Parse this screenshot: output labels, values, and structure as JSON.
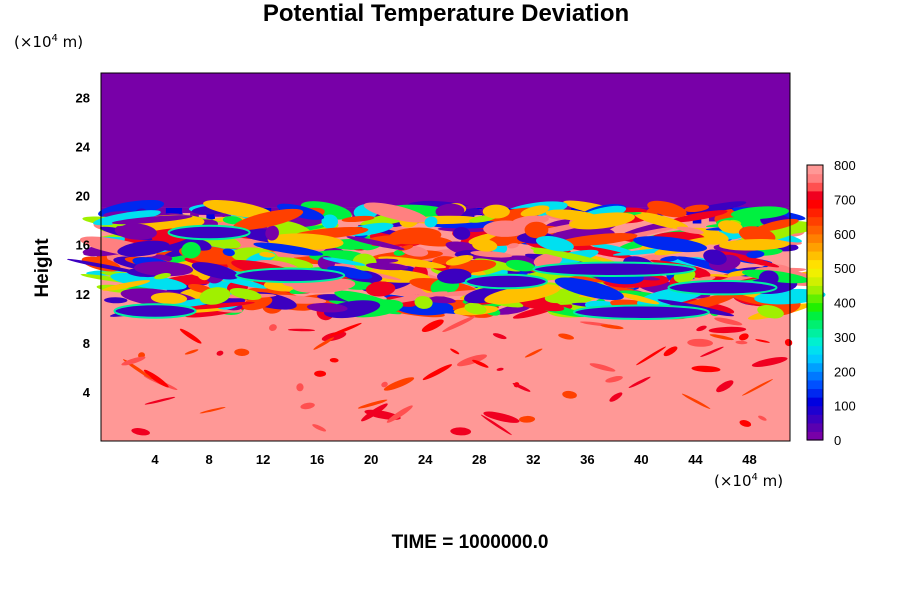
{
  "chart_data": {
    "type": "heatmap",
    "title": "Potential Temperature Deviation",
    "xlabel": "",
    "ylabel": "Height",
    "x_unit_prefix": "(×10",
    "x_unit_exp": "4",
    "x_unit_suffix": " m)",
    "y_unit_prefix": "(×10",
    "y_unit_exp": "4",
    "y_unit_suffix": " m)",
    "xlim": [
      0,
      51
    ],
    "ylim": [
      0,
      30
    ],
    "x_ticks": [
      4,
      8,
      12,
      16,
      20,
      24,
      28,
      32,
      36,
      40,
      44,
      48
    ],
    "y_ticks": [
      4,
      8,
      12,
      16,
      20,
      24,
      28
    ],
    "footer": "TIME = 1000000.0",
    "colorbar": {
      "range": [
        0,
        800
      ],
      "tick_labels": [
        0,
        100,
        200,
        300,
        400,
        500,
        600,
        700,
        800
      ],
      "colors": [
        "#7800a8",
        "#5a00b0",
        "#3c00c0",
        "#1e00d0",
        "#0000e0",
        "#0028f0",
        "#0050ff",
        "#0078ff",
        "#00a0ff",
        "#00c8ff",
        "#00e0f0",
        "#00f0d0",
        "#00f0a0",
        "#00f070",
        "#00f040",
        "#20f000",
        "#60f000",
        "#a0f000",
        "#d0f000",
        "#f0f000",
        "#ffe000",
        "#ffc000",
        "#ffa000",
        "#ff8000",
        "#ff6000",
        "#ff4000",
        "#ff2000",
        "#ff0000",
        "#f00020",
        "#ff5050",
        "#ff8080",
        "#ff9896"
      ]
    },
    "bands": [
      {
        "y_range": [
          19.0,
          30.0
        ],
        "value": 0,
        "note": "upper layer uniform"
      },
      {
        "y_range": [
          0.0,
          10.5
        ],
        "value": 800,
        "note": "lower layer mostly saturated with scattered red/yellow streaks"
      },
      {
        "y_range": [
          10.5,
          19.0
        ],
        "value_range": [
          0,
          800
        ],
        "note": "turbulent mixing zone with full-spectrum filaments"
      }
    ]
  }
}
